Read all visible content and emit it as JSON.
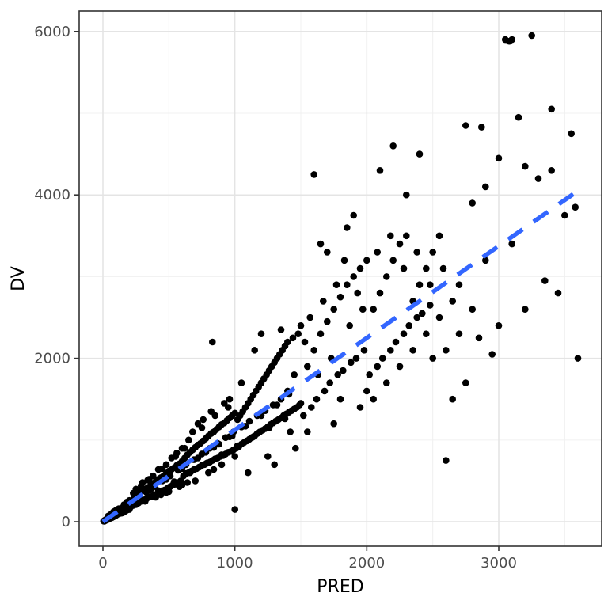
{
  "chart_data": {
    "type": "scatter",
    "title": "",
    "xlabel": "PRED",
    "ylabel": "DV",
    "x_ticks": [
      0,
      1000,
      2000,
      3000
    ],
    "x_minor_ticks": [
      500,
      1500,
      2500,
      3500
    ],
    "y_ticks": [
      0,
      2000,
      4000,
      6000
    ],
    "y_minor_ticks": [
      1000,
      3000,
      5000
    ],
    "xlim": [
      -180,
      3780
    ],
    "ylim": [
      -300,
      6250
    ],
    "grid": true,
    "legend": "none",
    "background_color": "#FFFFFF",
    "grid_major_color": "#E4E4E4",
    "grid_minor_color": "#F0F0F0",
    "panel_border_color": "#333333",
    "point_color": "#000000",
    "tick_label_color": "#4D4D4D",
    "axis_title_color": "#000000",
    "smooth_line": {
      "color": "#3366FF",
      "style": "dashed",
      "x1": 0,
      "y1": 0,
      "x2": 3600,
      "y2": 4050
    },
    "points": [
      [
        5,
        8
      ],
      [
        10,
        6
      ],
      [
        15,
        20
      ],
      [
        20,
        14
      ],
      [
        25,
        30
      ],
      [
        30,
        22
      ],
      [
        35,
        40
      ],
      [
        40,
        28
      ],
      [
        45,
        55
      ],
      [
        50,
        38
      ],
      [
        55,
        60
      ],
      [
        60,
        45
      ],
      [
        65,
        80
      ],
      [
        70,
        52
      ],
      [
        75,
        90
      ],
      [
        80,
        60
      ],
      [
        85,
        100
      ],
      [
        90,
        70
      ],
      [
        95,
        110
      ],
      [
        100,
        78
      ],
      [
        110,
        130
      ],
      [
        120,
        95
      ],
      [
        130,
        150
      ],
      [
        140,
        105
      ],
      [
        150,
        175
      ],
      [
        160,
        120
      ],
      [
        170,
        200
      ],
      [
        180,
        140
      ],
      [
        190,
        220
      ],
      [
        200,
        150
      ],
      [
        60,
        90
      ],
      [
        90,
        130
      ],
      [
        120,
        160
      ],
      [
        150,
        110
      ],
      [
        180,
        240
      ],
      [
        200,
        260
      ],
      [
        40,
        70
      ],
      [
        80,
        120
      ],
      [
        160,
        210
      ],
      [
        100,
        140
      ],
      [
        12,
        15
      ],
      [
        22,
        25
      ],
      [
        32,
        35
      ],
      [
        48,
        50
      ],
      [
        58,
        62
      ],
      [
        68,
        72
      ],
      [
        78,
        85
      ],
      [
        88,
        92
      ],
      [
        98,
        105
      ],
      [
        108,
        115
      ],
      [
        118,
        125
      ],
      [
        128,
        135
      ],
      [
        138,
        148
      ],
      [
        148,
        158
      ],
      [
        158,
        168
      ],
      [
        168,
        178
      ],
      [
        178,
        190
      ],
      [
        188,
        200
      ],
      [
        198,
        210
      ],
      [
        208,
        222
      ],
      [
        210,
        180
      ],
      [
        220,
        260
      ],
      [
        230,
        200
      ],
      [
        240,
        300
      ],
      [
        250,
        210
      ],
      [
        260,
        330
      ],
      [
        270,
        230
      ],
      [
        280,
        350
      ],
      [
        290,
        250
      ],
      [
        300,
        380
      ],
      [
        310,
        260
      ],
      [
        320,
        400
      ],
      [
        330,
        280
      ],
      [
        340,
        420
      ],
      [
        350,
        300
      ],
      [
        360,
        440
      ],
      [
        370,
        310
      ],
      [
        380,
        470
      ],
      [
        390,
        330
      ],
      [
        400,
        490
      ],
      [
        410,
        340
      ],
      [
        420,
        520
      ],
      [
        430,
        360
      ],
      [
        440,
        540
      ],
      [
        450,
        380
      ],
      [
        460,
        560
      ],
      [
        470,
        390
      ],
      [
        480,
        590
      ],
      [
        490,
        410
      ],
      [
        500,
        620
      ],
      [
        510,
        430
      ],
      [
        520,
        640
      ],
      [
        530,
        450
      ],
      [
        540,
        660
      ],
      [
        550,
        460
      ],
      [
        560,
        690
      ],
      [
        570,
        480
      ],
      [
        580,
        710
      ],
      [
        590,
        500
      ],
      [
        600,
        740
      ],
      [
        250,
        400
      ],
      [
        300,
        480
      ],
      [
        350,
        520
      ],
      [
        400,
        300
      ],
      [
        450,
        650
      ],
      [
        500,
        370
      ],
      [
        550,
        800
      ],
      [
        600,
        450
      ],
      [
        320,
        250
      ],
      [
        380,
        560
      ],
      [
        420,
        640
      ],
      [
        480,
        360
      ],
      [
        520,
        780
      ],
      [
        580,
        430
      ],
      [
        260,
        380
      ],
      [
        340,
        510
      ],
      [
        440,
        330
      ],
      [
        560,
        840
      ],
      [
        480,
        700
      ],
      [
        600,
        900
      ],
      [
        230,
        350
      ],
      [
        290,
        440
      ],
      [
        610,
        560
      ],
      [
        620,
        780
      ],
      [
        630,
        590
      ],
      [
        640,
        820
      ],
      [
        650,
        600
      ],
      [
        660,
        850
      ],
      [
        670,
        620
      ],
      [
        680,
        880
      ],
      [
        690,
        640
      ],
      [
        700,
        910
      ],
      [
        710,
        650
      ],
      [
        720,
        940
      ],
      [
        730,
        670
      ],
      [
        740,
        960
      ],
      [
        750,
        690
      ],
      [
        760,
        990
      ],
      [
        770,
        700
      ],
      [
        780,
        1020
      ],
      [
        790,
        720
      ],
      [
        800,
        1050
      ],
      [
        810,
        730
      ],
      [
        820,
        1080
      ],
      [
        830,
        750
      ],
      [
        840,
        1100
      ],
      [
        850,
        770
      ],
      [
        860,
        1130
      ],
      [
        870,
        780
      ],
      [
        880,
        1160
      ],
      [
        890,
        800
      ],
      [
        900,
        1190
      ],
      [
        910,
        810
      ],
      [
        920,
        1210
      ],
      [
        930,
        830
      ],
      [
        940,
        1240
      ],
      [
        950,
        850
      ],
      [
        960,
        1270
      ],
      [
        970,
        860
      ],
      [
        980,
        1300
      ],
      [
        990,
        880
      ],
      [
        1000,
        1330
      ],
      [
        650,
        1000
      ],
      [
        700,
        500
      ],
      [
        750,
        1150
      ],
      [
        800,
        600
      ],
      [
        850,
        1300
      ],
      [
        900,
        700
      ],
      [
        950,
        1400
      ],
      [
        1000,
        800
      ],
      [
        620,
        900
      ],
      [
        680,
        1100
      ],
      [
        720,
        1200
      ],
      [
        780,
        850
      ],
      [
        820,
        1350
      ],
      [
        880,
        950
      ],
      [
        920,
        1450
      ],
      [
        980,
        1050
      ],
      [
        640,
        480
      ],
      [
        760,
        1250
      ],
      [
        840,
        640
      ],
      [
        960,
        1500
      ],
      [
        1000,
        150
      ],
      [
        830,
        2200
      ],
      [
        1010,
        900
      ],
      [
        1020,
        1250
      ],
      [
        1030,
        920
      ],
      [
        1040,
        1300
      ],
      [
        1050,
        950
      ],
      [
        1060,
        1350
      ],
      [
        1070,
        970
      ],
      [
        1080,
        1400
      ],
      [
        1090,
        990
      ],
      [
        1100,
        1450
      ],
      [
        1110,
        1010
      ],
      [
        1120,
        1500
      ],
      [
        1130,
        1030
      ],
      [
        1140,
        1550
      ],
      [
        1150,
        1050
      ],
      [
        1160,
        1600
      ],
      [
        1170,
        1080
      ],
      [
        1180,
        1650
      ],
      [
        1190,
        1100
      ],
      [
        1200,
        1700
      ],
      [
        1210,
        1120
      ],
      [
        1220,
        1750
      ],
      [
        1230,
        1140
      ],
      [
        1240,
        1800
      ],
      [
        1250,
        1160
      ],
      [
        1260,
        1850
      ],
      [
        1270,
        1190
      ],
      [
        1280,
        1900
      ],
      [
        1290,
        1210
      ],
      [
        1300,
        1950
      ],
      [
        1310,
        1230
      ],
      [
        1320,
        2000
      ],
      [
        1330,
        1250
      ],
      [
        1340,
        2050
      ],
      [
        1350,
        1270
      ],
      [
        1360,
        2100
      ],
      [
        1370,
        1300
      ],
      [
        1380,
        2150
      ],
      [
        1390,
        1320
      ],
      [
        1400,
        2200
      ],
      [
        1410,
        1340
      ],
      [
        1420,
        1100
      ],
      [
        1430,
        1360
      ],
      [
        1440,
        2250
      ],
      [
        1450,
        1380
      ],
      [
        1460,
        900
      ],
      [
        1470,
        1400
      ],
      [
        1480,
        2300
      ],
      [
        1490,
        1430
      ],
      [
        1500,
        1450
      ],
      [
        1050,
        1700
      ],
      [
        1150,
        2100
      ],
      [
        1250,
        800
      ],
      [
        1350,
        2350
      ],
      [
        1450,
        1800
      ],
      [
        1100,
        600
      ],
      [
        1200,
        2300
      ],
      [
        1300,
        700
      ],
      [
        1400,
        1600
      ],
      [
        1500,
        2400
      ],
      [
        270,
        300
      ],
      [
        330,
        360
      ],
      [
        390,
        430
      ],
      [
        450,
        500
      ],
      [
        510,
        560
      ],
      [
        570,
        630
      ],
      [
        630,
        700
      ],
      [
        690,
        760
      ],
      [
        750,
        830
      ],
      [
        810,
        900
      ],
      [
        870,
        960
      ],
      [
        930,
        1030
      ],
      [
        990,
        1100
      ],
      [
        1050,
        1160
      ],
      [
        1110,
        1230
      ],
      [
        1170,
        1300
      ],
      [
        1230,
        1360
      ],
      [
        1290,
        1430
      ],
      [
        1350,
        1500
      ],
      [
        1410,
        1560
      ],
      [
        240,
        220
      ],
      [
        360,
        390
      ],
      [
        480,
        520
      ],
      [
        600,
        650
      ],
      [
        720,
        780
      ],
      [
        840,
        910
      ],
      [
        960,
        1040
      ],
      [
        1080,
        1170
      ],
      [
        1200,
        1300
      ],
      [
        1320,
        1430
      ],
      [
        300,
        270
      ],
      [
        420,
        380
      ],
      [
        540,
        490
      ],
      [
        660,
        600
      ],
      [
        780,
        710
      ],
      [
        900,
        820
      ],
      [
        1020,
        930
      ],
      [
        1140,
        1040
      ],
      [
        1260,
        1150
      ],
      [
        1380,
        1260
      ],
      [
        1520,
        1300
      ],
      [
        1550,
        1900
      ],
      [
        1580,
        1400
      ],
      [
        1600,
        2100
      ],
      [
        1620,
        1500
      ],
      [
        1650,
        2300
      ],
      [
        1680,
        1600
      ],
      [
        1700,
        2450
      ],
      [
        1720,
        1700
      ],
      [
        1750,
        2600
      ],
      [
        1780,
        1800
      ],
      [
        1800,
        2750
      ],
      [
        1820,
        1850
      ],
      [
        1850,
        2900
      ],
      [
        1880,
        1950
      ],
      [
        1900,
        3000
      ],
      [
        1920,
        2000
      ],
      [
        1950,
        3100
      ],
      [
        1980,
        2100
      ],
      [
        2000,
        3200
      ],
      [
        1550,
        1100
      ],
      [
        1650,
        3400
      ],
      [
        1750,
        1200
      ],
      [
        1850,
        3600
      ],
      [
        1950,
        1400
      ],
      [
        1600,
        4250
      ],
      [
        1700,
        3300
      ],
      [
        1800,
        1500
      ],
      [
        1900,
        3750
      ],
      [
        2000,
        1600
      ],
      [
        1570,
        2500
      ],
      [
        1670,
        2700
      ],
      [
        1770,
        2900
      ],
      [
        1870,
        2400
      ],
      [
        1970,
        2600
      ],
      [
        1530,
        2200
      ],
      [
        1630,
        1800
      ],
      [
        1730,
        2000
      ],
      [
        1830,
        3200
      ],
      [
        1930,
        2800
      ],
      [
        2020,
        1800
      ],
      [
        2050,
        2600
      ],
      [
        2080,
        1900
      ],
      [
        2100,
        2800
      ],
      [
        2120,
        2000
      ],
      [
        2150,
        3000
      ],
      [
        2180,
        2100
      ],
      [
        2200,
        3200
      ],
      [
        2220,
        2200
      ],
      [
        2250,
        3400
      ],
      [
        2280,
        2300
      ],
      [
        2300,
        3500
      ],
      [
        2320,
        2400
      ],
      [
        2350,
        2700
      ],
      [
        2380,
        2500
      ],
      [
        2400,
        2900
      ],
      [
        2420,
        2550
      ],
      [
        2450,
        3100
      ],
      [
        2480,
        2650
      ],
      [
        2500,
        3300
      ],
      [
        2100,
        4300
      ],
      [
        2200,
        4600
      ],
      [
        2300,
        4000
      ],
      [
        2400,
        4500
      ],
      [
        2500,
        2000
      ],
      [
        2550,
        3500
      ],
      [
        2600,
        750
      ],
      [
        2600,
        2100
      ],
      [
        2050,
        1500
      ],
      [
        2150,
        1700
      ],
      [
        2250,
        1900
      ],
      [
        2350,
        2100
      ],
      [
        2450,
        2300
      ],
      [
        2550,
        2500
      ],
      [
        2080,
        3300
      ],
      [
        2180,
        3500
      ],
      [
        2280,
        3100
      ],
      [
        2380,
        3300
      ],
      [
        2480,
        2900
      ],
      [
        2580,
        3100
      ],
      [
        2650,
        2700
      ],
      [
        2700,
        2300
      ],
      [
        2750,
        4850
      ],
      [
        2870,
        4830
      ],
      [
        2800,
        3900
      ],
      [
        2850,
        2250
      ],
      [
        2900,
        4100
      ],
      [
        2950,
        2050
      ],
      [
        3000,
        4450
      ],
      [
        3050,
        5900
      ],
      [
        3080,
        5880
      ],
      [
        3100,
        5900
      ],
      [
        3150,
        4950
      ],
      [
        3400,
        5050
      ],
      [
        3200,
        4350
      ],
      [
        3250,
        5950
      ],
      [
        3300,
        4200
      ],
      [
        3350,
        2950
      ],
      [
        3400,
        4300
      ],
      [
        3450,
        2800
      ],
      [
        3500,
        3750
      ],
      [
        3550,
        4750
      ],
      [
        3600,
        2000
      ],
      [
        3580,
        3850
      ],
      [
        2700,
        2900
      ],
      [
        2800,
        2600
      ],
      [
        2900,
        3200
      ],
      [
        3000,
        2400
      ],
      [
        3100,
        3400
      ],
      [
        3200,
        2600
      ],
      [
        2650,
        1500
      ],
      [
        2750,
        1700
      ]
    ]
  }
}
